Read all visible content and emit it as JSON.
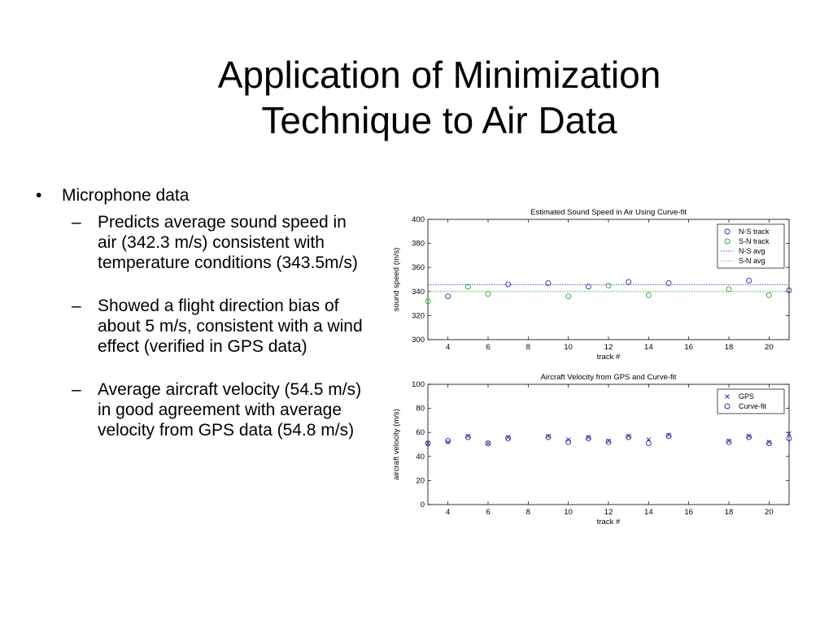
{
  "slide": {
    "title_line1": "Application of Minimization",
    "title_line2": "Technique to Air Data",
    "bullet_mark": "•",
    "dash_mark": "–",
    "bullets": [
      {
        "text": "Microphone data",
        "sub": [
          "Predicts average sound speed in air (342.3 m/s) consistent with temperature conditions (343.5m/s)",
          "Showed a flight direction bias of about 5 m/s, consistent with a wind effect (verified in GPS data)",
          "Average aircraft velocity (54.5 m/s) in good agreement with average velocity from GPS data (54.8 m/s)"
        ]
      }
    ]
  },
  "chart_data": [
    {
      "type": "scatter",
      "title": "Estimated Sound Speed in Air Using Curve-fit",
      "xlabel": "track #",
      "ylabel": "sound speed (m/s)",
      "xlim": [
        3,
        21
      ],
      "ylim": [
        300,
        400
      ],
      "xticks": [
        4,
        6,
        8,
        10,
        12,
        14,
        16,
        18,
        20
      ],
      "yticks": [
        300,
        320,
        340,
        360,
        380,
        400
      ],
      "legend_position": "top-right",
      "series": [
        {
          "name": "N-S track",
          "marker": "circle",
          "color": "#2a2aa8",
          "x": [
            4,
            7,
            9,
            11,
            13,
            15,
            19,
            21
          ],
          "y": [
            336,
            346,
            347,
            344,
            348,
            347,
            349,
            341
          ]
        },
        {
          "name": "S-N track",
          "marker": "circle",
          "color": "#2da52d",
          "x": [
            3,
            5,
            6,
            10,
            12,
            14,
            18,
            20
          ],
          "y": [
            332,
            344,
            338,
            336,
            345,
            337,
            342,
            337
          ]
        },
        {
          "name": "N-S avg",
          "marker": "line",
          "style": "dotted",
          "color": "#2a2aa8",
          "y": 345.5
        },
        {
          "name": "S-N avg",
          "marker": "line",
          "style": "dotted",
          "color": "#2da52d",
          "y": 340
        }
      ]
    },
    {
      "type": "scatter",
      "title": "Aircraft Velocity from GPS and Curve-fit",
      "xlabel": "track #",
      "ylabel": "aircraft velocity (m/s)",
      "xlim": [
        3,
        21
      ],
      "ylim": [
        0,
        100
      ],
      "xticks": [
        4,
        6,
        8,
        10,
        12,
        14,
        16,
        18,
        20
      ],
      "yticks": [
        0,
        20,
        40,
        60,
        80,
        100
      ],
      "legend_position": "top-right",
      "series": [
        {
          "name": "GPS",
          "marker": "x",
          "color": "#2a2aa8",
          "x": [
            3,
            4,
            5,
            6,
            7,
            9,
            10,
            11,
            12,
            13,
            14,
            15,
            18,
            19,
            20,
            21
          ],
          "y": [
            51,
            52,
            57,
            51,
            56,
            57,
            54,
            56,
            53,
            57,
            54,
            58,
            53,
            57,
            52,
            59
          ]
        },
        {
          "name": "Curve-fit",
          "marker": "circle",
          "color": "#2a2aa8",
          "x": [
            3,
            4,
            5,
            6,
            7,
            9,
            10,
            11,
            12,
            13,
            14,
            15,
            18,
            19,
            20,
            21
          ],
          "y": [
            51,
            53,
            56,
            51,
            55,
            56,
            52,
            55,
            52,
            56,
            51,
            57,
            52,
            56,
            51,
            55
          ]
        }
      ]
    }
  ]
}
